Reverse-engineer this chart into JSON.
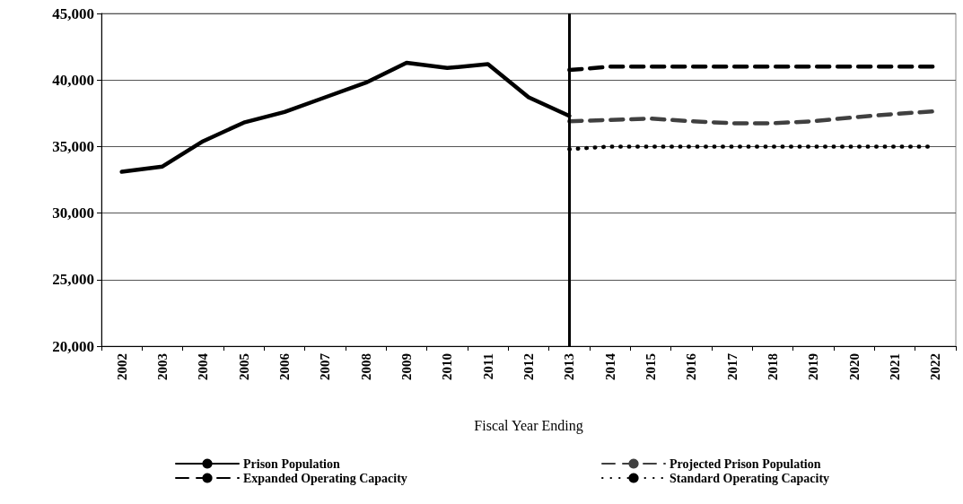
{
  "chart_data": {
    "type": "line",
    "xlabel": "Fiscal Year Ending",
    "categories": [
      "2002",
      "2003",
      "2004",
      "2005",
      "2006",
      "2007",
      "2008",
      "2009",
      "2010",
      "2011",
      "2012",
      "2013",
      "2014",
      "2015",
      "2016",
      "2017",
      "2018",
      "2019",
      "2020",
      "2021",
      "2022"
    ],
    "series": [
      {
        "name": "Prison Population",
        "color": "#000000",
        "line_style": "solid",
        "values": [
          33100,
          33500,
          35400,
          36800,
          37600,
          38700,
          39800,
          41300,
          40900,
          41200,
          38700,
          37300,
          null,
          null,
          null,
          null,
          null,
          null,
          null,
          null,
          null
        ]
      },
      {
        "name": "Projected Prison Population",
        "color": "#404040",
        "line_style": "dashed",
        "values": [
          null,
          null,
          null,
          null,
          null,
          null,
          null,
          null,
          null,
          null,
          null,
          36900,
          37000,
          37100,
          36900,
          36750,
          36750,
          36900,
          37200,
          37450,
          37650
        ]
      },
      {
        "name": "Expanded Operating Capacity",
        "color": "#000000",
        "line_style": "dashed",
        "values": [
          null,
          null,
          null,
          null,
          null,
          null,
          null,
          null,
          null,
          null,
          null,
          40750,
          41000,
          41000,
          41000,
          41000,
          41000,
          41000,
          41000,
          41000,
          41000
        ]
      },
      {
        "name": "Standard Operating Capacity",
        "color": "#000000",
        "line_style": "dotted",
        "values": [
          null,
          null,
          null,
          null,
          null,
          null,
          null,
          null,
          null,
          null,
          null,
          34800,
          35000,
          35000,
          35000,
          35000,
          35000,
          35000,
          35000,
          35000,
          35000
        ]
      }
    ],
    "ylim": [
      20000,
      45000
    ],
    "yticks": [
      {
        "value": 20000,
        "label": "20,000"
      },
      {
        "value": 25000,
        "label": "25,000"
      },
      {
        "value": 30000,
        "label": "30,000"
      },
      {
        "value": 35000,
        "label": "35,000"
      },
      {
        "value": 40000,
        "label": "40,000"
      },
      {
        "value": 45000,
        "label": "45,000"
      }
    ],
    "ref_lines": [
      {
        "axis": "x",
        "value": "2013",
        "color": "#000000"
      }
    ],
    "grid": "y",
    "legend": "bottom",
    "marker": "none"
  }
}
